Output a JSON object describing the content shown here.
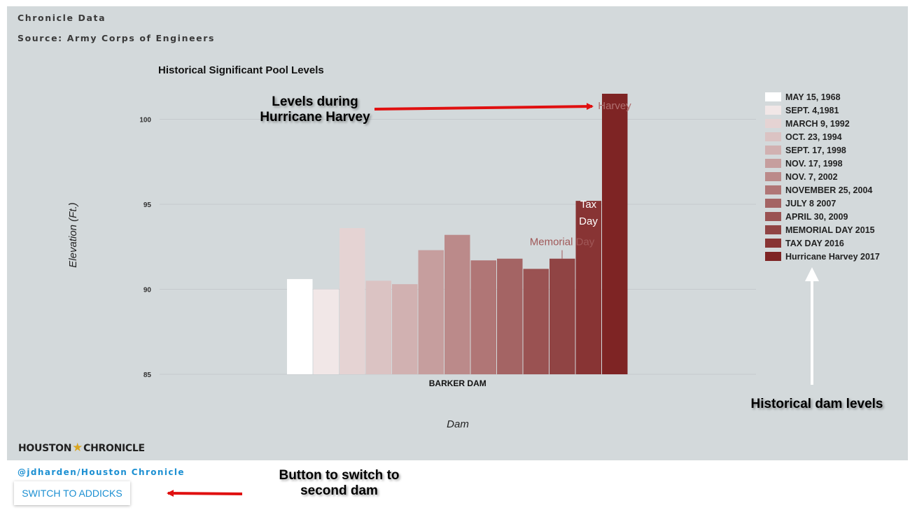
{
  "header": {
    "org": "Chronicle Data",
    "source": "Source: Army Corps of Engineers"
  },
  "branding": {
    "logo_left": "HOUSTON",
    "logo_star": "★",
    "logo_right": "CHRONICLE",
    "credit": "@jdharden/Houston Chronicle"
  },
  "controls": {
    "switch_label": "SWITCH TO ADDICKS"
  },
  "callouts": {
    "harvey_levels": "Levels during Hurricane Harvey",
    "historical": "Historical dam levels",
    "button_note": "Button to switch to second dam"
  },
  "chart_data": {
    "type": "bar",
    "title": "Historical Significant Pool Levels",
    "xlabel": "Dam",
    "ylabel": "Elevation (Ft.)",
    "categories": [
      "BARKER DAM"
    ],
    "ylim": [
      85,
      101.5
    ],
    "yticks": [
      85,
      90,
      95,
      100
    ],
    "grid": true,
    "legend_position": "right",
    "series": [
      {
        "name": "MAY 15, 1968",
        "values": [
          90.6
        ],
        "color": "#ffffff"
      },
      {
        "name": "SEPT. 4,1981",
        "values": [
          90.0
        ],
        "color": "#f1e7e7"
      },
      {
        "name": "MARCH 9, 1992",
        "values": [
          93.6
        ],
        "color": "#e5d3d3"
      },
      {
        "name": "OCT. 23, 1994",
        "values": [
          90.5
        ],
        "color": "#dbc3c3"
      },
      {
        "name": "SEPT. 17, 1998",
        "values": [
          90.3
        ],
        "color": "#d1b1b1"
      },
      {
        "name": "NOV. 17, 1998",
        "values": [
          92.3
        ],
        "color": "#c69e9e"
      },
      {
        "name": "NOV. 7, 2002",
        "values": [
          93.2
        ],
        "color": "#bb8a8a"
      },
      {
        "name": "NOVEMBER 25, 2004",
        "values": [
          91.7
        ],
        "color": "#b07676"
      },
      {
        "name": "JULY 8 2007",
        "values": [
          91.8
        ],
        "color": "#a46464"
      },
      {
        "name": "APRIL 30, 2009",
        "values": [
          91.2
        ],
        "color": "#9a5252"
      },
      {
        "name": "MEMORIAL DAY 2015",
        "values": [
          91.8
        ],
        "color": "#904444"
      },
      {
        "name": "TAX DAY 2016",
        "values": [
          95.2
        ],
        "color": "#883434"
      },
      {
        "name": "Hurricane Harvey 2017",
        "values": [
          101.5
        ],
        "color": "#7e2424"
      }
    ],
    "annotations": [
      {
        "text": "Harvey",
        "series": "Hurricane Harvey 2017",
        "value": 100.6
      },
      {
        "text": "Memorial Day",
        "series": "MEMORIAL DAY 2015",
        "value": 92.6
      },
      {
        "text": "Tax",
        "series": "TAX DAY 2016",
        "value": 94.8
      },
      {
        "text": "Day",
        "series": "TAX DAY 2016",
        "value": 93.8
      }
    ]
  }
}
